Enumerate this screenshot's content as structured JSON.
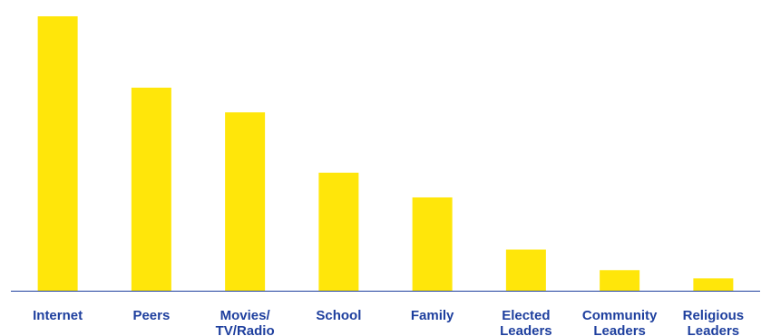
{
  "chart_data": {
    "type": "bar",
    "categories": [
      [
        "Internet"
      ],
      [
        "Peers"
      ],
      [
        "Movies/",
        "TV/Radio"
      ],
      [
        "School"
      ],
      [
        "Family"
      ],
      [
        "Elected",
        "Leaders"
      ],
      [
        "Community",
        "Leaders"
      ],
      [
        "Religious",
        "Leaders"
      ]
    ],
    "values": [
      100,
      74,
      65,
      43,
      34,
      15,
      7.5,
      4.5
    ],
    "ylim": [
      0,
      100
    ],
    "bar_color": "#ffe60a",
    "axis_color": "#1e3f9e",
    "label_color": "#1e3f9e",
    "grid": false,
    "legend": "none"
  }
}
